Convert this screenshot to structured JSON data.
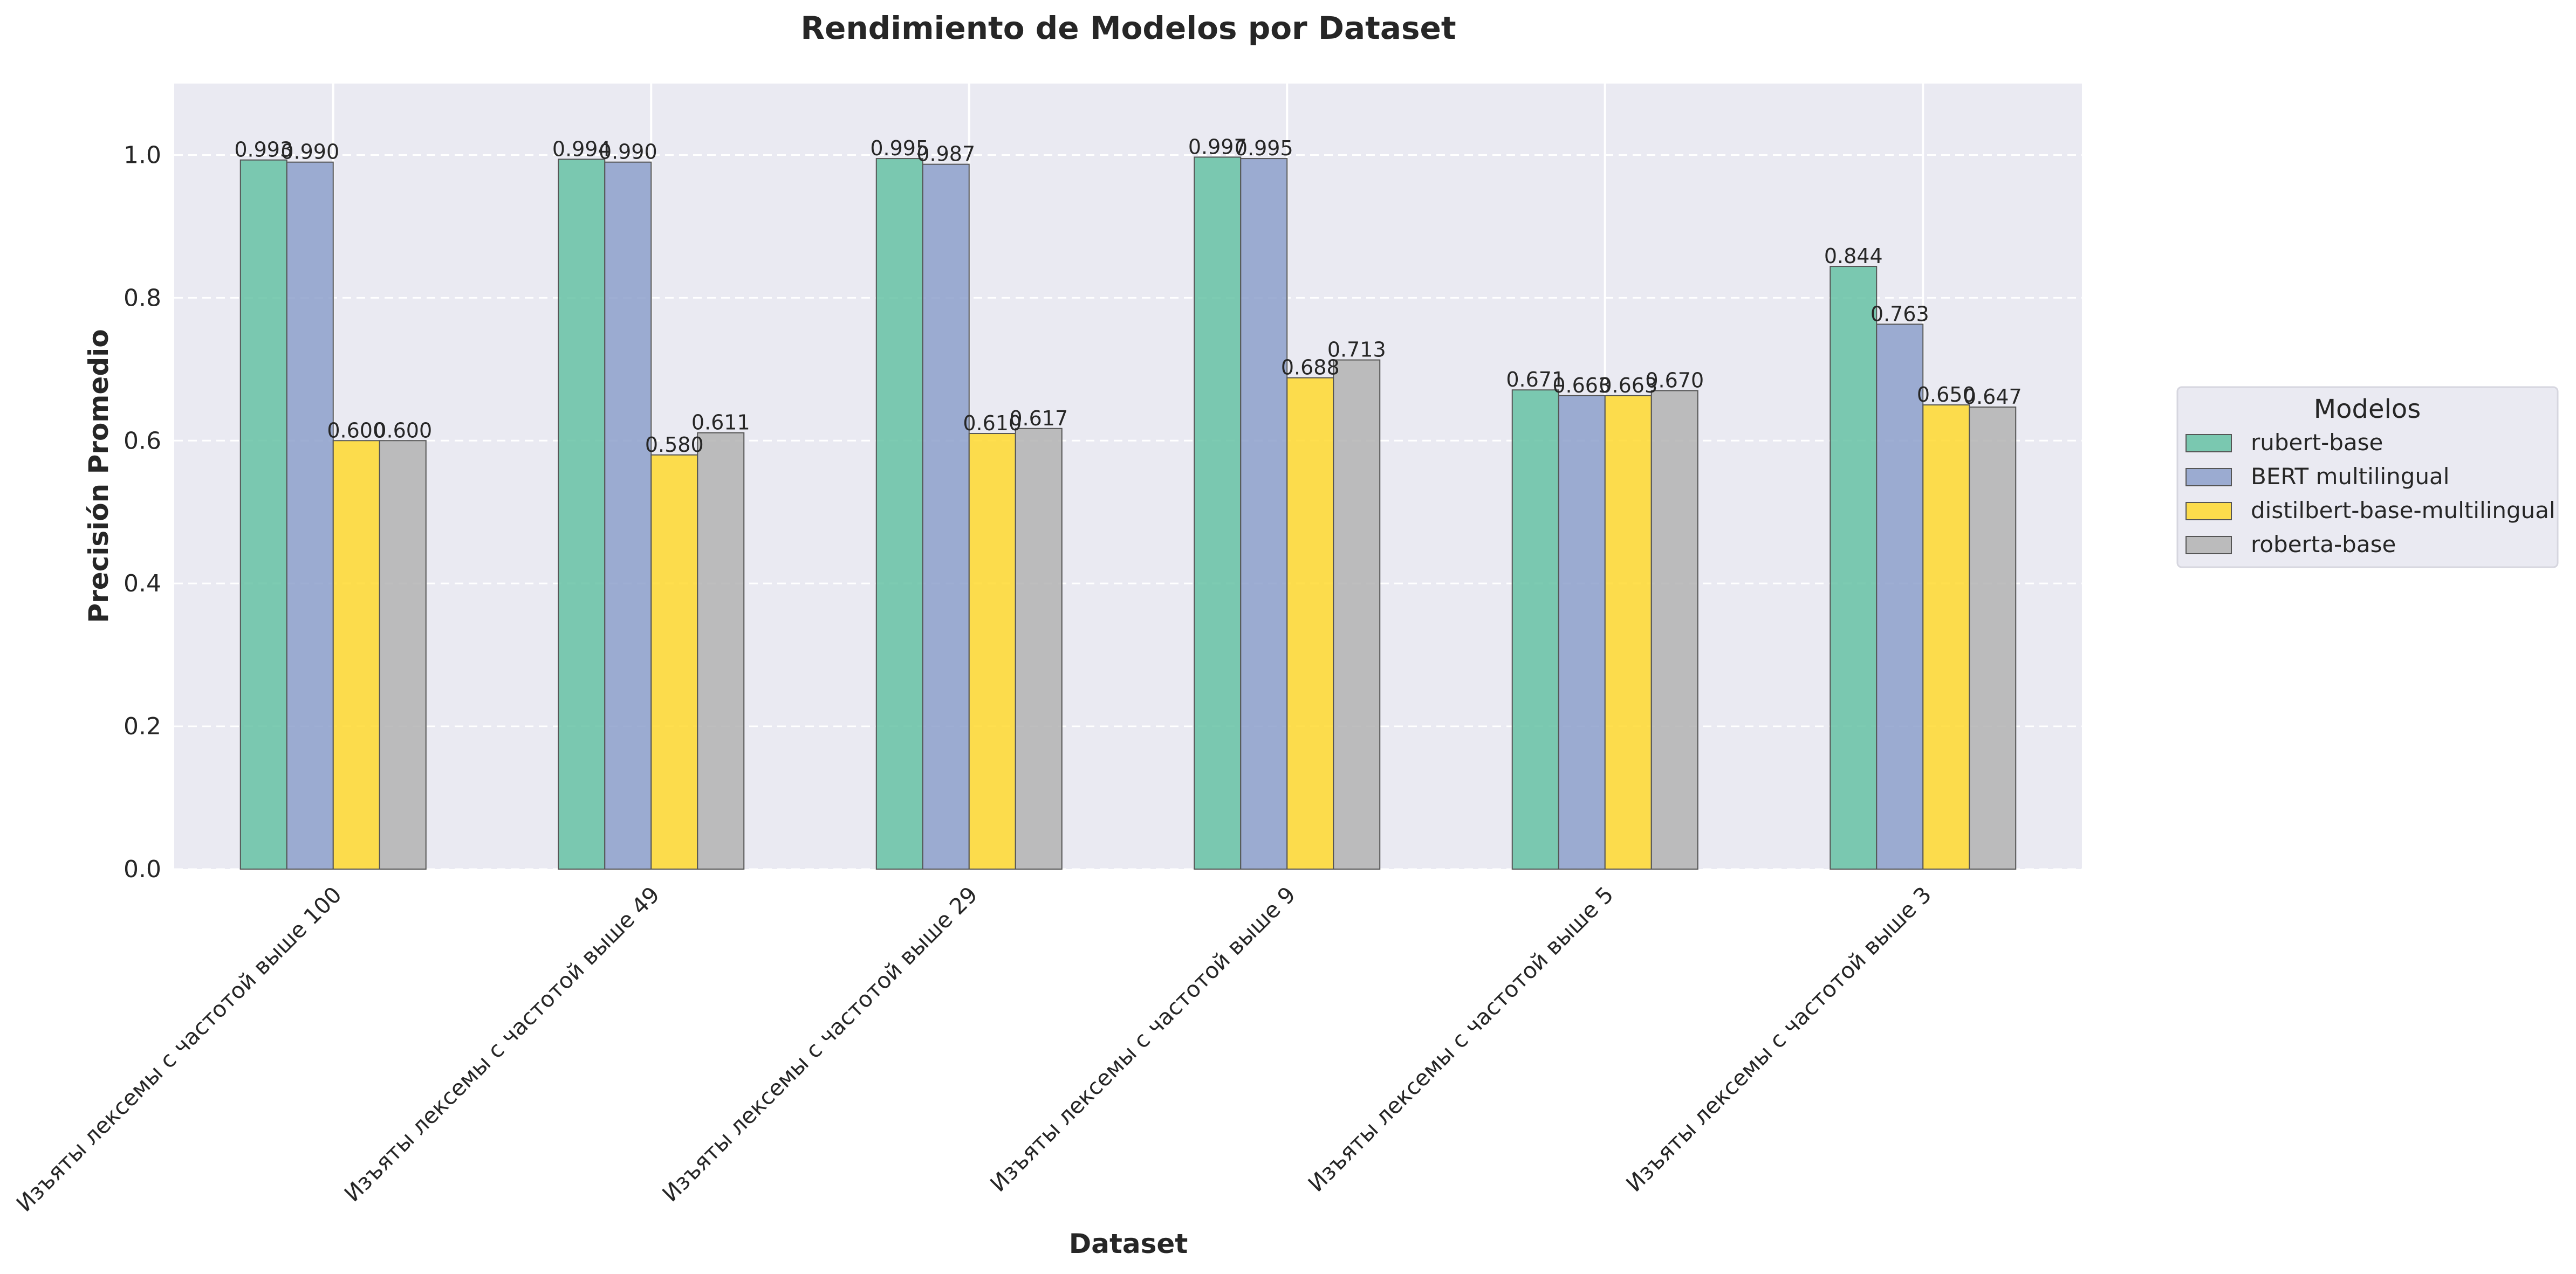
{
  "chart_data": {
    "type": "bar",
    "title": "Rendimiento de Modelos por Dataset",
    "xlabel": "Dataset",
    "ylabel": "Precisión Promedio",
    "ylim": [
      0,
      1.1
    ],
    "yticks": [
      0.0,
      0.2,
      0.4,
      0.6,
      0.8,
      1.0
    ],
    "ytick_labels": [
      "0.0",
      "0.2",
      "0.4",
      "0.6",
      "0.8",
      "1.0"
    ],
    "grid": true,
    "categories": [
      "Изъяты лексемы с частотой выше 100",
      "Изъяты лексемы с частотой выше 49",
      "Изъяты лексемы с частотой выше 29",
      "Изъяты лексемы с частотой выше 9",
      "Изъяты лексемы с частотой выше 5",
      "Изъяты лексемы с частотой выше 3"
    ],
    "series": [
      {
        "name": "rubert-base",
        "color": "#66c2a5",
        "values": [
          0.993,
          0.994,
          0.995,
          0.997,
          0.671,
          0.844
        ],
        "labels": [
          "0.993",
          "0.994",
          "0.995",
          "0.997",
          "0.671",
          "0.844"
        ]
      },
      {
        "name": "BERT multilingual",
        "color": "#8da0cb",
        "values": [
          0.99,
          0.99,
          0.987,
          0.995,
          0.663,
          0.763
        ],
        "labels": [
          "0.990",
          "0.990",
          "0.987",
          "0.995",
          "0.663",
          "0.763"
        ]
      },
      {
        "name": "distilbert-base-multilingual",
        "color": "#ffd92f",
        "values": [
          0.6,
          0.58,
          0.61,
          0.688,
          0.663,
          0.65
        ],
        "labels": [
          "0.600",
          "0.580",
          "0.610",
          "0.688",
          "0.663",
          "0.650"
        ]
      },
      {
        "name": "roberta-base",
        "color": "#b3b3b3",
        "values": [
          0.6,
          0.611,
          0.617,
          0.713,
          0.67,
          0.647
        ],
        "labels": [
          "0.600",
          "0.611",
          "0.617",
          "0.713",
          "0.670",
          "0.647"
        ]
      }
    ],
    "legend": {
      "title": "Modelos",
      "placement": "right"
    },
    "colors": {
      "plot_background": "#eaeaf2",
      "grid": "#ffffff",
      "legend_background": "#eaeaf2"
    }
  }
}
